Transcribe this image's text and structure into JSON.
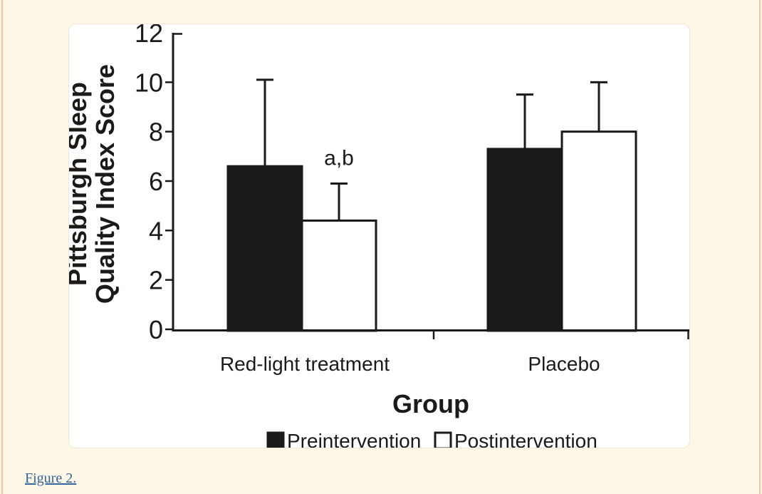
{
  "page": {
    "background_color": "#fdf7e7",
    "edge_border_color": "#efc4a9",
    "figure_link": {
      "label": "Figure 2.",
      "color": "#36639d"
    }
  },
  "chart_data": {
    "type": "bar",
    "title": "",
    "xlabel": "Group",
    "ylabel": "Pittsburgh Sleep Quality Index Score",
    "ylabel_lines": [
      "Pittsburgh Sleep",
      "Quality Index Score"
    ],
    "ylim": [
      0,
      12
    ],
    "yticks": [
      0,
      2,
      4,
      6,
      8,
      10,
      12
    ],
    "grid": false,
    "categories": [
      "Red-light treatment",
      "Placebo"
    ],
    "series": [
      {
        "name": "Preintervention",
        "fill": "#1c1a19",
        "values": [
          6.6,
          7.3
        ],
        "error_up": [
          3.5,
          2.2
        ]
      },
      {
        "name": "Postintervention",
        "fill": "#ffffff",
        "values": [
          4.4,
          8.0
        ],
        "error_up": [
          1.5,
          2.0
        ]
      }
    ],
    "annotations": [
      {
        "text": "a,b",
        "category_index": 0,
        "series_index": 1
      }
    ],
    "legend_position": "bottom",
    "ink_color": "#1c1a19"
  }
}
